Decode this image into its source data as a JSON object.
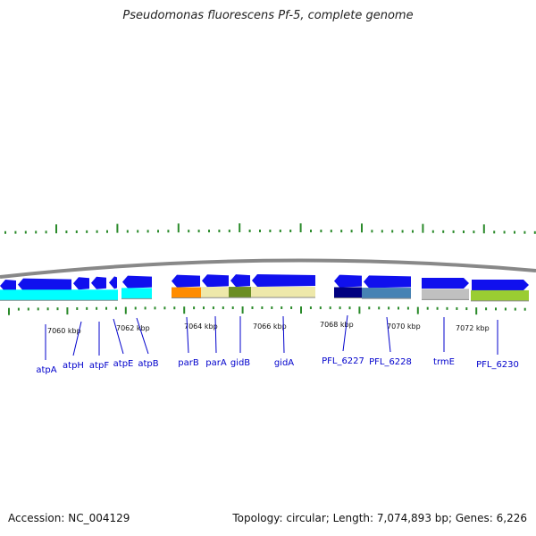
{
  "title": "Pseudomonas fluorescens Pf-5, complete genome",
  "footer": {
    "accession": "Accession: NC_004129",
    "stats": "Topology: circular; Length: 7,074,893 bp; Genes: 6,226"
  },
  "colors": {
    "backbone": "#888888",
    "gene_arrow": "#1010ee",
    "link": "#0000cc",
    "tick": "#2a8a2a"
  },
  "kbp_labels": [
    "7060 kbp",
    "7062 kbp",
    "7064 kbp",
    "7066 kbp",
    "7068 kbp",
    "7070 kbp",
    "7072 kbp"
  ],
  "genes": [
    {
      "name": "atpA"
    },
    {
      "name": "atpH"
    },
    {
      "name": "atpF"
    },
    {
      "name": "atpE"
    },
    {
      "name": "atpB"
    },
    {
      "name": "parB"
    },
    {
      "name": "parA"
    },
    {
      "name": "gidB"
    },
    {
      "name": "gidA"
    },
    {
      "name": "PFL_6227"
    },
    {
      "name": "PFL_6228"
    },
    {
      "name": "trmE"
    },
    {
      "name": "PFL_6230"
    }
  ],
  "cog_colors": [
    "#00ffff",
    "#ff8c00",
    "#eee8aa",
    "#6b8e23",
    "#000080",
    "#4682b4",
    "#c0c0c0",
    "#9acd32"
  ]
}
